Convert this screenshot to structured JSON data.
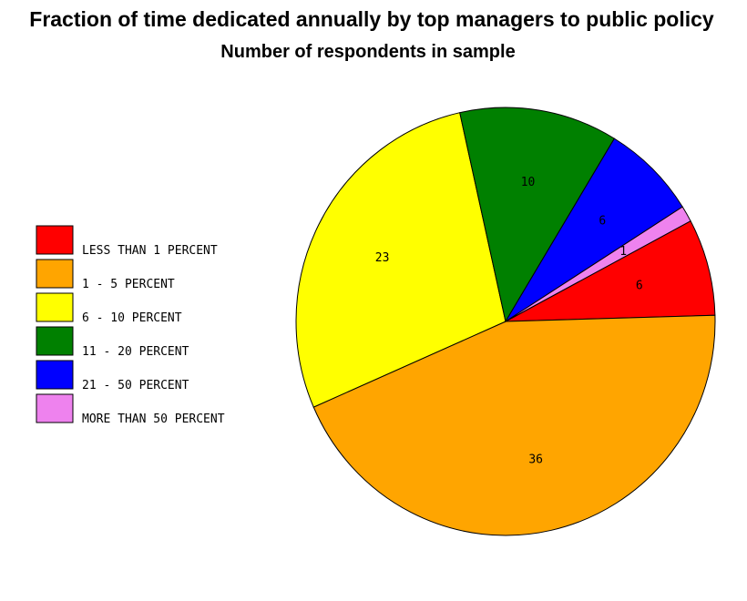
{
  "chart_data": {
    "type": "pie",
    "title": "Fraction of time dedicated annually by top managers to public policy",
    "subtitle": "Number of respondents in sample",
    "legend_position": "left",
    "slices": [
      {
        "label": "LESS THAN 1 PERCENT",
        "value": 6,
        "color": "#ff0000"
      },
      {
        "label": "1 - 5 PERCENT",
        "value": 36,
        "color": "#ffa500"
      },
      {
        "label": "6 - 10 PERCENT",
        "value": 23,
        "color": "#ffff00"
      },
      {
        "label": "11 - 20 PERCENT",
        "value": 10,
        "color": "#008000"
      },
      {
        "label": "21 - 50 PERCENT",
        "value": 6,
        "color": "#0000ff"
      },
      {
        "label": "MORE THAN 50 PERCENT",
        "value": 1,
        "color": "#ee82ee"
      }
    ]
  }
}
